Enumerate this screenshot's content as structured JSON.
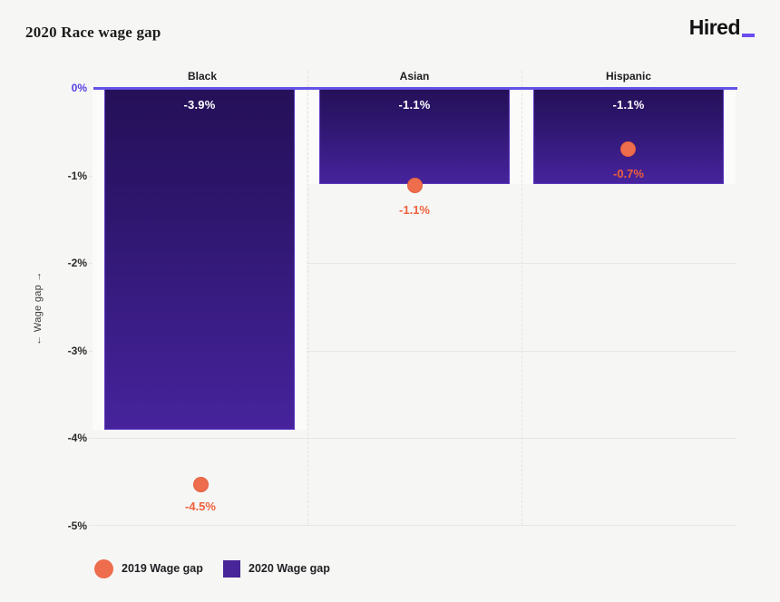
{
  "header": {
    "title": "2020 Race wage gap",
    "logo_text": "Hired"
  },
  "chart_data": {
    "type": "bar",
    "title": "2020 Race wage gap",
    "categories": [
      "Black",
      "Asian",
      "Hispanic"
    ],
    "series": [
      {
        "name": "2019 Wage gap",
        "type": "scatter",
        "marker": "circle",
        "color": "#EE6D4D",
        "values": [
          -4.5,
          -1.1,
          -0.7
        ],
        "labels": [
          "-4.5%",
          "-1.1%",
          "-0.7%"
        ]
      },
      {
        "name": "2020 Wage gap",
        "type": "bar",
        "color": "#46239C",
        "gradient_top": "#251058",
        "values": [
          -3.9,
          -1.1,
          -1.1
        ],
        "labels": [
          "-3.9%",
          "-1.1%",
          "-1.1%"
        ]
      }
    ],
    "xlabel": "",
    "ylabel": "← Wage gap →",
    "ylim": [
      -5,
      0
    ],
    "yticks": [
      "0%",
      "-1%",
      "-2%",
      "-3%",
      "-4%",
      "-5%"
    ],
    "grid": true,
    "facet_separators": "dashed",
    "legend_position": "bottom-left",
    "zero_line_color": "#6252E4",
    "zero_tick_color": "#5742E4",
    "orange_label_color": "#F0603C",
    "background_color": "#F6F6F5"
  },
  "legend": {
    "items": [
      {
        "label": "2019 Wage gap",
        "marker": "circle",
        "color": "#EE6D4D"
      },
      {
        "label": "2020 Wage gap",
        "marker": "square",
        "color": "#482598"
      }
    ]
  }
}
